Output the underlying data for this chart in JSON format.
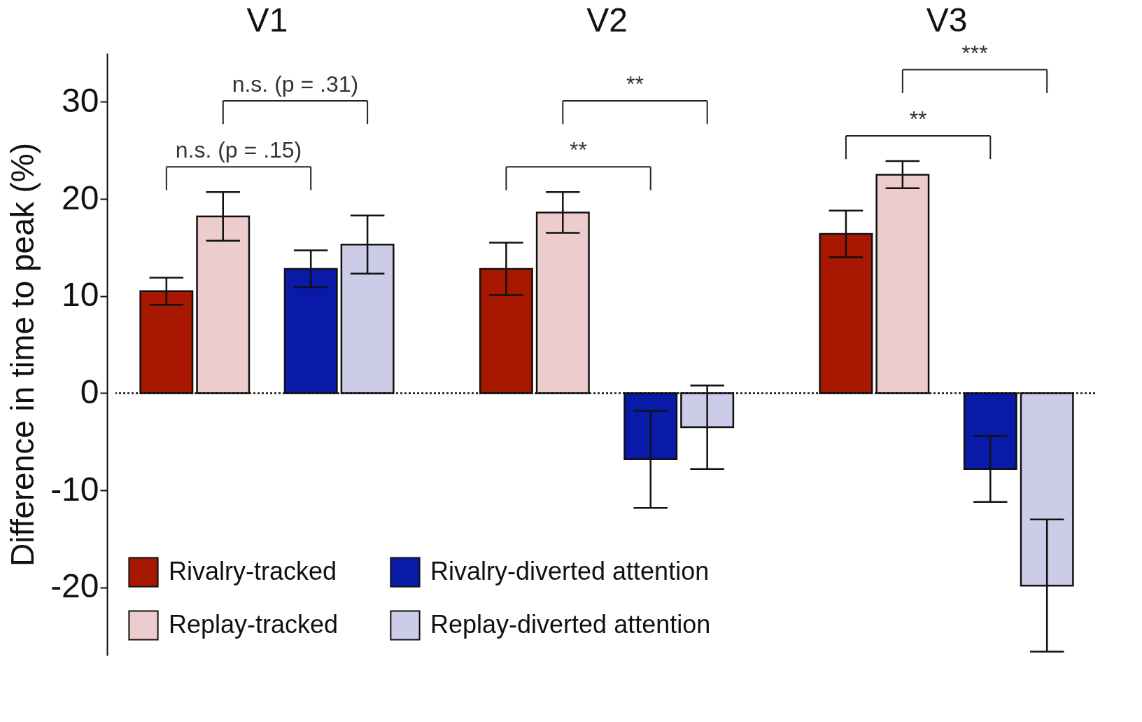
{
  "chart_data": {
    "type": "bar",
    "ylabel": "Difference in time to peak (%)",
    "categories": [
      "V1",
      "V2",
      "V3"
    ],
    "series": [
      {
        "name": "Rivalry-tracked",
        "color": "#a81800",
        "values": [
          10.5,
          12.8,
          16.4
        ],
        "errors": [
          1.4,
          2.7,
          2.4
        ]
      },
      {
        "name": "Replay-tracked",
        "color": "#eccccc",
        "values": [
          18.2,
          18.6,
          22.5
        ],
        "errors": [
          2.5,
          2.1,
          1.4
        ]
      },
      {
        "name": "Rivalry-diverted attention",
        "color": "#0a1aa8",
        "values": [
          12.8,
          -6.8,
          -7.8
        ],
        "errors": [
          1.9,
          5.0,
          3.4
        ]
      },
      {
        "name": "Replay-diverted attention",
        "color": "#cccce8",
        "values": [
          15.3,
          -3.5,
          -19.8
        ],
        "errors": [
          3.0,
          4.3,
          6.8
        ]
      }
    ],
    "ylim": [
      -27,
      35
    ],
    "yticks": [
      -20,
      -10,
      0,
      10,
      20,
      30
    ],
    "ref_lines": [
      {
        "axis": "y",
        "value": 0,
        "line_style": "dotted"
      }
    ],
    "legend": "bottom left",
    "annotations": [
      "n.s. (p = .15)",
      "n.s. (p = .31)",
      "**",
      "**",
      "**",
      "***"
    ]
  }
}
